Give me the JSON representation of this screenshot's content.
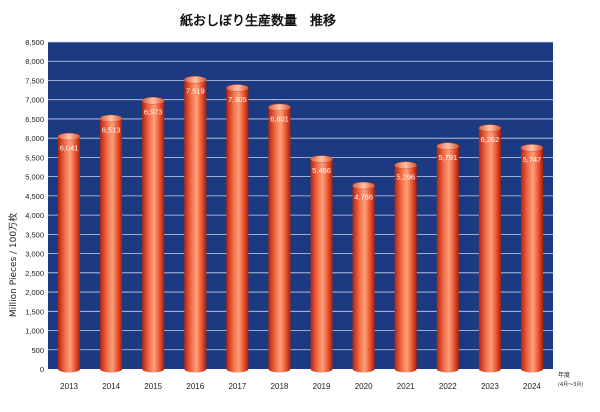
{
  "chart_data": {
    "type": "bar",
    "title": "紙おしぼり生産数量　推移",
    "xlabel": "年度",
    "xlabel_sub": "(4月～3月)",
    "ylabel": "Million Pieces / 100万枚",
    "ylim": [
      0,
      8500
    ],
    "ytick_step": 500,
    "yticks": [
      "0",
      "500",
      "1,000",
      "1,500",
      "2,000",
      "2,500",
      "3,000",
      "3,500",
      "4,000",
      "4,500",
      "5,000",
      "5,500",
      "6,000",
      "6,500",
      "7,000",
      "7,500",
      "8,000",
      "8,500"
    ],
    "grid": true,
    "legend": "none",
    "categories": [
      "2013",
      "2014",
      "2015",
      "2016",
      "2017",
      "2018",
      "2019",
      "2020",
      "2021",
      "2022",
      "2023",
      "2024"
    ],
    "values": [
      6041,
      6513,
      6973,
      7519,
      7305,
      6801,
      5456,
      4766,
      5296,
      5791,
      6262,
      5747
    ],
    "data_labels": [
      "6,041",
      "6,513",
      "6,973",
      "7,519",
      "7,305",
      "6,801",
      "5,456",
      "4,766",
      "5,296",
      "5,791",
      "6,262",
      "5,747"
    ],
    "colors": {
      "plot_background": "#1b3a82",
      "grid": "#c9d3ee",
      "bar_dark": "#c0280f",
      "bar_mid": "#f2603a",
      "bar_light": "#ff9a75",
      "bar_top": "#fcb79a"
    }
  }
}
